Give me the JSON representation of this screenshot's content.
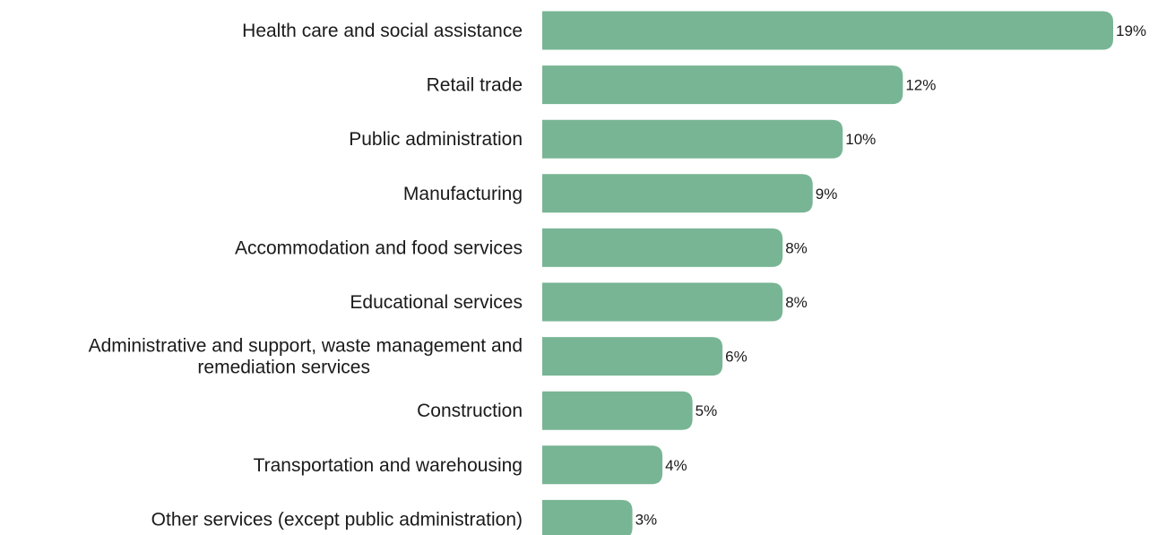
{
  "chart_data": {
    "type": "bar",
    "orientation": "horizontal",
    "title": "",
    "xlabel": "",
    "ylabel": "",
    "categories": [
      [
        "Health care and social assistance"
      ],
      [
        "Retail trade"
      ],
      [
        "Public administration"
      ],
      [
        "Manufacturing"
      ],
      [
        "Accommodation and food services"
      ],
      [
        "Educational services"
      ],
      [
        "Administrative and support, waste management and",
        "remediation services"
      ],
      [
        "Construction"
      ],
      [
        "Transportation and warehousing"
      ],
      [
        "Other services (except public administration)"
      ]
    ],
    "values": [
      19,
      12,
      10,
      9,
      8,
      8,
      6,
      5,
      4,
      3
    ],
    "value_labels": [
      "19%",
      "12%",
      "10%",
      "9%",
      "8%",
      "8%",
      "6%",
      "5%",
      "4%",
      "3%"
    ],
    "unit": "%",
    "xlim": [
      0,
      19
    ],
    "grid": false,
    "legend": "none",
    "bar_color": "#78b594"
  }
}
